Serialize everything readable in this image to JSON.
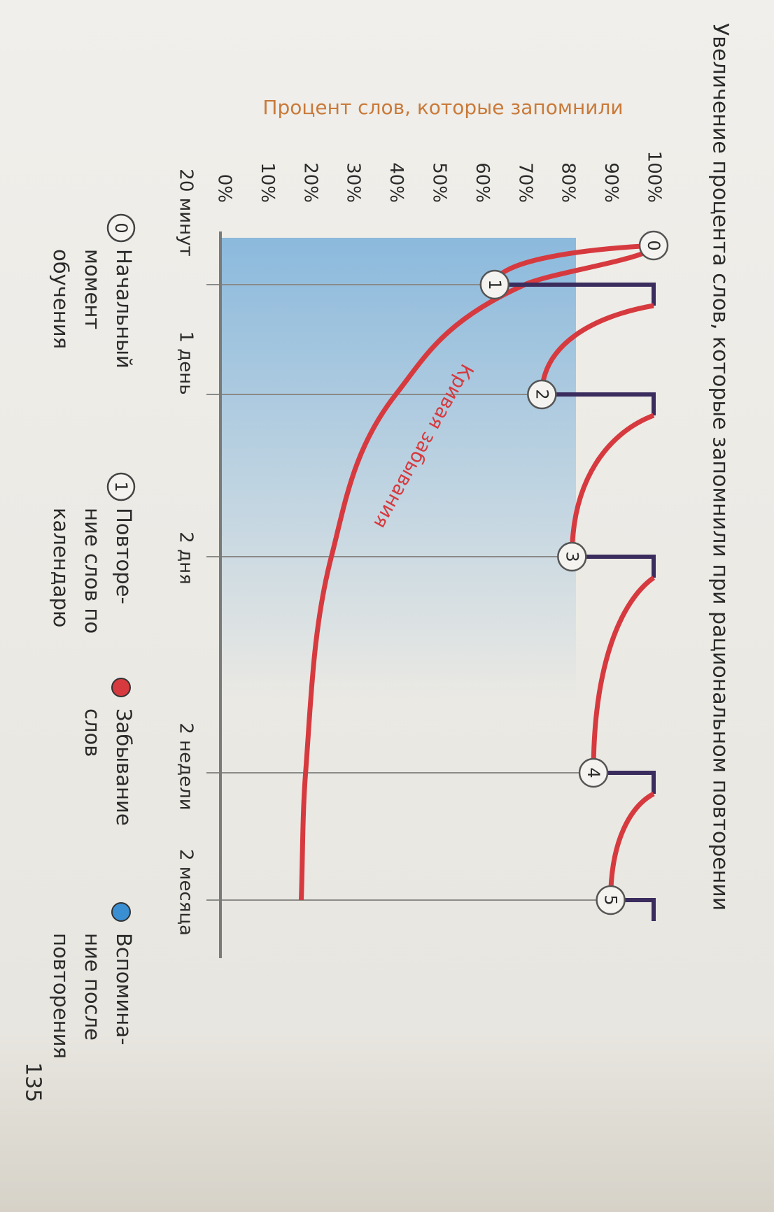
{
  "chart_data": {
    "type": "line",
    "title": "Увеличение процента слов, которые запомнили при рациональном повторении",
    "y_label": "Процент  слов, которые запомнили",
    "categories": [
      null,
      "20 минут",
      "1 день",
      "2 дня",
      "2 недели",
      "2 месяца"
    ],
    "ylim": [
      0,
      100
    ],
    "yticks": [
      {
        "value": 0,
        "label": "0%"
      },
      {
        "value": 10,
        "label": "10%"
      },
      {
        "value": 20,
        "label": "20%"
      },
      {
        "value": 30,
        "label": "30%"
      },
      {
        "value": 40,
        "label": "40%"
      },
      {
        "value": 50,
        "label": "50%"
      },
      {
        "value": 60,
        "label": "60%"
      },
      {
        "value": 70,
        "label": "70%"
      },
      {
        "value": 80,
        "label": "80%"
      },
      {
        "value": 90,
        "label": "90%"
      },
      {
        "value": 100,
        "label": "100%"
      }
    ],
    "forgetting": {
      "label": "Кривая забывания",
      "color": "#d63a3f",
      "values": [
        100,
        70,
        40,
        25,
        19,
        18
      ]
    },
    "repetition": {
      "color": "#d63a3f",
      "jump_color": "#3b2c5e",
      "values": [
        100,
        63,
        74,
        81,
        86,
        90
      ],
      "after": [
        null,
        100,
        100,
        100,
        100,
        100
      ],
      "point_labels": [
        "0",
        "1",
        "2",
        "3",
        "4",
        "5"
      ]
    },
    "legend": [
      {
        "symbol": "0",
        "label": "Начальный\nмомент\nобучения"
      },
      {
        "symbol": "1",
        "label": "Повторе-\nние слов по\nкалендарю"
      },
      {
        "color": "#d63a3f",
        "label": "Забывание\nслов"
      },
      {
        "color": "#3a8fd3",
        "label": "Вспомина-\nние после\nповторения"
      }
    ]
  },
  "page": {
    "number": "135"
  }
}
